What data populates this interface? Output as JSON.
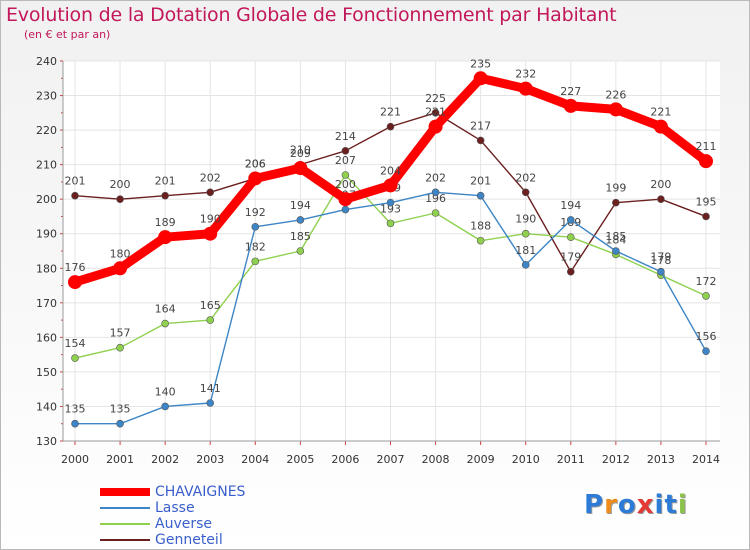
{
  "header": {
    "title": "Evolution de la Dotation Globale de Fonctionnement par Habitant",
    "subtitle": "(en € et par an)"
  },
  "logo": {
    "letters": [
      "P",
      "r",
      "o",
      "x",
      "i",
      "t",
      "i"
    ],
    "colors": [
      "#2c7bd6",
      "#f08c1c",
      "#2c7bd6",
      "#e53935",
      "#2c7bd6",
      "#2c7bd6",
      "#8bc34a"
    ]
  },
  "chart_data": {
    "type": "line",
    "categories": [
      "2000",
      "2001",
      "2002",
      "2003",
      "2004",
      "2005",
      "2006",
      "2007",
      "2008",
      "2009",
      "2010",
      "2011",
      "2012",
      "2013",
      "2014"
    ],
    "ylim": [
      130,
      240
    ],
    "yticks": [
      "130",
      "140",
      "150",
      "160",
      "170",
      "180",
      "190",
      "200",
      "210",
      "220",
      "230",
      "240"
    ],
    "grid": true,
    "legend_position": "bottom-left",
    "series": [
      {
        "name": "Genneteil",
        "color": "#6b1f1f",
        "values": [
          201,
          200,
          201,
          202,
          206,
          210,
          214,
          221,
          225,
          217,
          202,
          179,
          199,
          200,
          195
        ],
        "labels": [
          "201",
          "200",
          "201",
          "202",
          "206",
          "210",
          "214",
          "221",
          "225",
          "217",
          "202",
          "179",
          "199",
          "200",
          "195"
        ]
      },
      {
        "name": "Auverse",
        "color": "#8fd14f",
        "values": [
          154,
          157,
          164,
          165,
          182,
          185,
          207,
          193,
          196,
          188,
          190,
          189,
          184,
          178,
          172
        ],
        "labels": [
          "154",
          "157",
          "164",
          "165",
          "182",
          "185",
          "207",
          "193",
          "196",
          "188",
          "190",
          "189",
          "184",
          "178",
          "172"
        ]
      },
      {
        "name": "Lasse",
        "color": "#3d85c6",
        "values": [
          135,
          135,
          140,
          141,
          192,
          194,
          197,
          199,
          202,
          201,
          181,
          194,
          185,
          179,
          156
        ],
        "labels": [
          "135",
          "135",
          "140",
          "141",
          "192",
          "194",
          "197",
          "199",
          "202",
          "201",
          "181",
          "194",
          "185",
          "179",
          "156"
        ]
      },
      {
        "name": "CHAVAIGNES",
        "color": "#ff0000",
        "values": [
          176,
          180,
          189,
          190,
          206,
          209,
          200,
          204,
          221,
          235,
          232,
          227,
          226,
          221,
          211
        ],
        "labels": [
          "176",
          "180",
          "189",
          "190",
          "206",
          "209",
          "200",
          "204",
          "221",
          "235",
          "232",
          "227",
          "226",
          "221",
          "211"
        ]
      }
    ]
  }
}
